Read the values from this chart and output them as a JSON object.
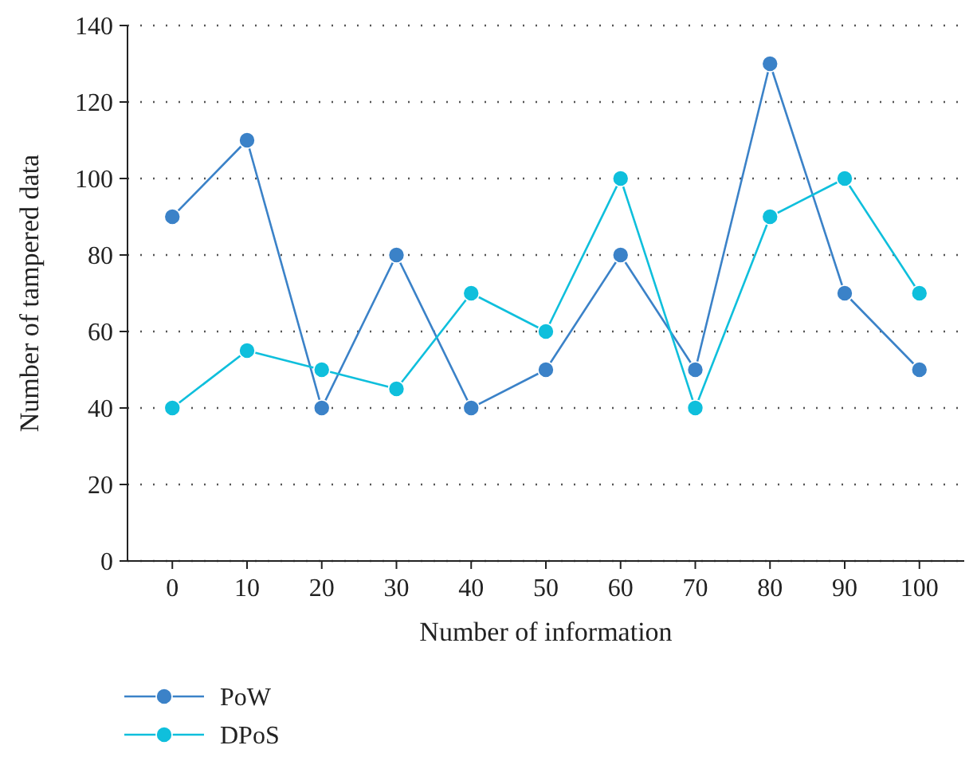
{
  "chart_data": {
    "type": "line",
    "xlabel": "Number of information",
    "ylabel": "Number of tampered data",
    "categories": [
      "0",
      "10",
      "20",
      "30",
      "40",
      "50",
      "60",
      "70",
      "80",
      "90",
      "100"
    ],
    "series": [
      {
        "name": "PoW",
        "color": "#3b82c8",
        "values": [
          90,
          110,
          40,
          80,
          40,
          50,
          80,
          50,
          130,
          70,
          50
        ]
      },
      {
        "name": "DPoS",
        "color": "#0fbfdc",
        "values": [
          40,
          55,
          50,
          45,
          70,
          60,
          100,
          40,
          90,
          100,
          70
        ]
      }
    ],
    "ylim": [
      0,
      140
    ],
    "yticks": [
      0,
      20,
      40,
      60,
      80,
      100,
      120,
      140
    ],
    "grid": "y",
    "legend": "bottom left",
    "marker": "circle",
    "line_style": "solid"
  }
}
